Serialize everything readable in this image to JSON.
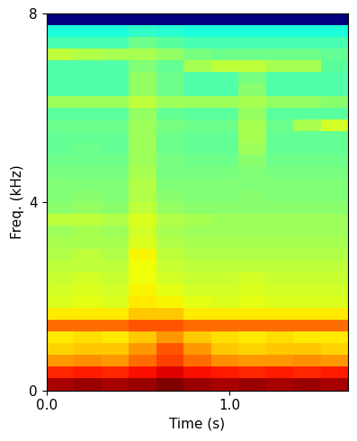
{
  "chart_data": {
    "type": "heatmap",
    "x_label": "Time (s)",
    "y_label": "Freq. (kHz)",
    "color": "jet",
    "xlim": [
      0.0,
      1.65
    ],
    "ylim": [
      0,
      8
    ],
    "xticks": [
      0.0,
      1.0
    ],
    "yticks": [
      0,
      4,
      8
    ],
    "x_edges": [
      0.0,
      0.15,
      0.3,
      0.45,
      0.6,
      0.75,
      0.9,
      1.05,
      1.2,
      1.35,
      1.5,
      1.65
    ],
    "y_edges": [
      0,
      0.25,
      0.5,
      0.75,
      1.0,
      1.25,
      1.5,
      1.75,
      2.0,
      2.25,
      2.5,
      2.75,
      3.0,
      3.25,
      3.5,
      3.75,
      4.0,
      4.25,
      4.5,
      4.75,
      5.0,
      5.25,
      5.5,
      5.75,
      6.0,
      6.25,
      6.5,
      6.75,
      7.0,
      7.25,
      7.5,
      7.75,
      8.0
    ],
    "cells": [
      [
        92,
        93,
        92,
        93,
        95,
        93,
        92,
        93,
        92,
        93,
        92
      ],
      [
        84,
        85,
        84,
        86,
        88,
        86,
        85,
        84,
        85,
        84,
        85
      ],
      [
        74,
        75,
        74,
        78,
        82,
        78,
        75,
        74,
        74,
        75,
        74
      ],
      [
        69,
        70,
        70,
        74,
        80,
        74,
        70,
        69,
        70,
        70,
        69
      ],
      [
        67,
        68,
        67,
        70,
        74,
        70,
        68,
        67,
        68,
        67,
        67
      ],
      [
        78,
        78,
        78,
        80,
        80,
        78,
        78,
        78,
        78,
        78,
        78
      ],
      [
        67,
        67,
        67,
        70,
        70,
        67,
        67,
        67,
        67,
        67,
        67
      ],
      [
        63,
        64,
        63,
        67,
        66,
        64,
        63,
        64,
        63,
        63,
        63
      ],
      [
        62,
        63,
        62,
        66,
        64,
        62,
        62,
        63,
        62,
        62,
        62
      ],
      [
        61,
        62,
        61,
        65,
        62,
        61,
        61,
        62,
        61,
        61,
        61
      ],
      [
        60,
        60,
        60,
        65,
        61,
        60,
        60,
        60,
        60,
        60,
        60
      ],
      [
        59,
        60,
        59,
        66,
        60,
        59,
        59,
        59,
        59,
        59,
        59
      ],
      [
        58,
        58,
        58,
        63,
        59,
        58,
        58,
        58,
        58,
        58,
        58
      ],
      [
        57,
        58,
        57,
        62,
        58,
        57,
        57,
        57,
        57,
        57,
        57
      ],
      [
        60,
        60,
        59,
        63,
        59,
        58,
        57,
        57,
        57,
        57,
        57
      ],
      [
        55,
        56,
        55,
        60,
        56,
        55,
        55,
        55,
        55,
        55,
        55
      ],
      [
        54,
        55,
        54,
        59,
        55,
        54,
        54,
        55,
        54,
        54,
        54
      ],
      [
        54,
        54,
        54,
        59,
        54,
        54,
        54,
        54,
        54,
        54,
        54
      ],
      [
        53,
        53,
        53,
        58,
        53,
        53,
        53,
        54,
        53,
        53,
        53
      ],
      [
        52,
        52,
        52,
        57,
        53,
        52,
        52,
        55,
        52,
        52,
        52
      ],
      [
        51,
        52,
        51,
        57,
        52,
        51,
        51,
        57,
        51,
        51,
        51
      ],
      [
        51,
        51,
        51,
        57,
        52,
        51,
        51,
        58,
        51,
        51,
        51
      ],
      [
        52,
        52,
        52,
        57,
        53,
        52,
        52,
        58,
        52,
        58,
        62
      ],
      [
        50,
        50,
        50,
        56,
        51,
        50,
        50,
        56,
        50,
        50,
        50
      ],
      [
        57,
        57,
        57,
        60,
        57,
        57,
        57,
        58,
        56,
        56,
        55
      ],
      [
        49,
        49,
        49,
        56,
        52,
        49,
        49,
        55,
        49,
        49,
        49
      ],
      [
        49,
        49,
        49,
        56,
        52,
        49,
        49,
        53,
        49,
        49,
        49
      ],
      [
        49,
        49,
        49,
        54,
        51,
        58,
        60,
        60,
        58,
        58,
        50
      ],
      [
        60,
        59,
        58,
        58,
        56,
        53,
        52,
        52,
        52,
        52,
        51
      ],
      [
        48,
        48,
        48,
        52,
        50,
        48,
        48,
        48,
        48,
        48,
        48
      ],
      [
        44,
        44,
        44,
        46,
        45,
        44,
        44,
        44,
        44,
        44,
        44
      ],
      [
        12,
        12,
        12,
        12,
        12,
        12,
        12,
        12,
        12,
        12,
        12
      ]
    ]
  }
}
